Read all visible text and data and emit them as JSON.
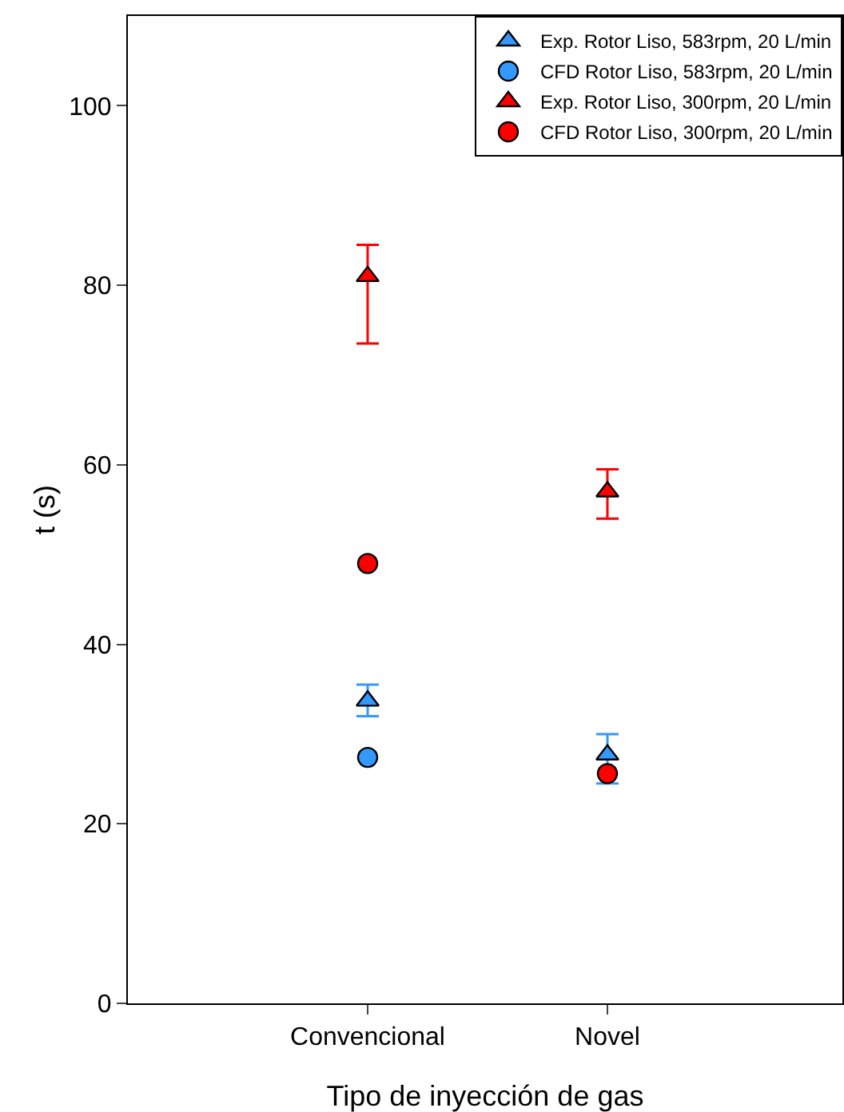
{
  "chart_data": {
    "type": "scatter",
    "xlabel": "Tipo de inyección de gas",
    "ylabel": "t (s)",
    "categories": [
      "Convencional",
      "Novel"
    ],
    "ylim": [
      0,
      110
    ],
    "yticks": [
      0,
      20,
      40,
      60,
      80,
      100
    ],
    "grid": false,
    "legend": "top right",
    "series": [
      {
        "name": "Exp. Rotor Liso, 583rpm, 20 L/min",
        "color": "#3399ff",
        "marker": "triangle",
        "values": [
          33.7,
          27.7
        ],
        "errors": [
          [
            32.0,
            35.5
          ],
          [
            24.5,
            30.0
          ]
        ]
      },
      {
        "name": "CFD Rotor Liso, 583rpm, 20 L/min",
        "color": "#3399ff",
        "marker": "circle",
        "values": [
          27.4,
          null
        ]
      },
      {
        "name": "Exp. Rotor Liso, 300rpm, 20 L/min",
        "color": "#ff0000",
        "marker": "triangle",
        "values": [
          81.0,
          57.0
        ],
        "errors": [
          [
            73.5,
            84.5
          ],
          [
            54.0,
            59.5
          ]
        ]
      },
      {
        "name": "CFD Rotor Liso, 300rpm, 20 L/min",
        "color": "#ff0000",
        "marker": "circle",
        "values": [
          49.0,
          25.6
        ]
      }
    ]
  }
}
